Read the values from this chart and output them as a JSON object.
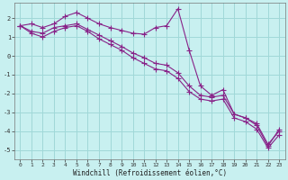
{
  "xlabel": "Windchill (Refroidissement éolien,°C)",
  "background_color": "#c8f0f0",
  "grid_color": "#a0d8d8",
  "line_color": "#882288",
  "xlim": [
    -0.5,
    23.5
  ],
  "ylim": [
    -5.5,
    2.8
  ],
  "xticks": [
    0,
    1,
    2,
    3,
    4,
    5,
    6,
    7,
    8,
    9,
    10,
    11,
    12,
    13,
    14,
    15,
    16,
    17,
    18,
    19,
    20,
    21,
    22,
    23
  ],
  "yticks": [
    -5,
    -4,
    -3,
    -2,
    -1,
    0,
    1,
    2
  ],
  "line1_x": [
    0,
    1,
    2,
    3,
    4,
    5,
    6,
    7,
    8,
    9,
    10,
    11,
    12,
    13,
    14,
    15,
    16,
    17,
    18,
    19,
    20,
    21,
    22,
    23
  ],
  "line1_y": [
    1.6,
    1.7,
    1.5,
    1.7,
    2.1,
    2.3,
    2.0,
    1.7,
    1.5,
    1.35,
    1.2,
    1.15,
    1.5,
    1.6,
    2.5,
    0.3,
    -1.6,
    -2.1,
    -1.8,
    -3.1,
    -3.3,
    -3.7,
    -4.8,
    -3.9
  ],
  "line2_x": [
    0,
    1,
    2,
    3,
    4,
    5,
    6,
    7,
    8,
    9,
    10,
    11,
    12,
    13,
    14,
    15,
    16,
    17,
    18,
    19,
    20,
    21,
    22,
    23
  ],
  "line2_y": [
    1.6,
    1.3,
    1.2,
    1.5,
    1.6,
    1.7,
    1.4,
    1.1,
    0.8,
    0.5,
    0.15,
    -0.1,
    -0.4,
    -0.5,
    -0.9,
    -1.6,
    -2.1,
    -2.2,
    -2.1,
    -3.1,
    -3.3,
    -3.6,
    -4.7,
    -4.0
  ],
  "line3_x": [
    0,
    1,
    2,
    3,
    4,
    5,
    6,
    7,
    8,
    9,
    10,
    11,
    12,
    13,
    14,
    15,
    16,
    17,
    18,
    19,
    20,
    21,
    22,
    23
  ],
  "line3_y": [
    1.6,
    1.2,
    1.0,
    1.3,
    1.5,
    1.6,
    1.3,
    0.9,
    0.6,
    0.3,
    -0.1,
    -0.4,
    -0.7,
    -0.8,
    -1.2,
    -1.9,
    -2.3,
    -2.4,
    -2.3,
    -3.3,
    -3.5,
    -3.9,
    -4.9,
    -4.2
  ]
}
